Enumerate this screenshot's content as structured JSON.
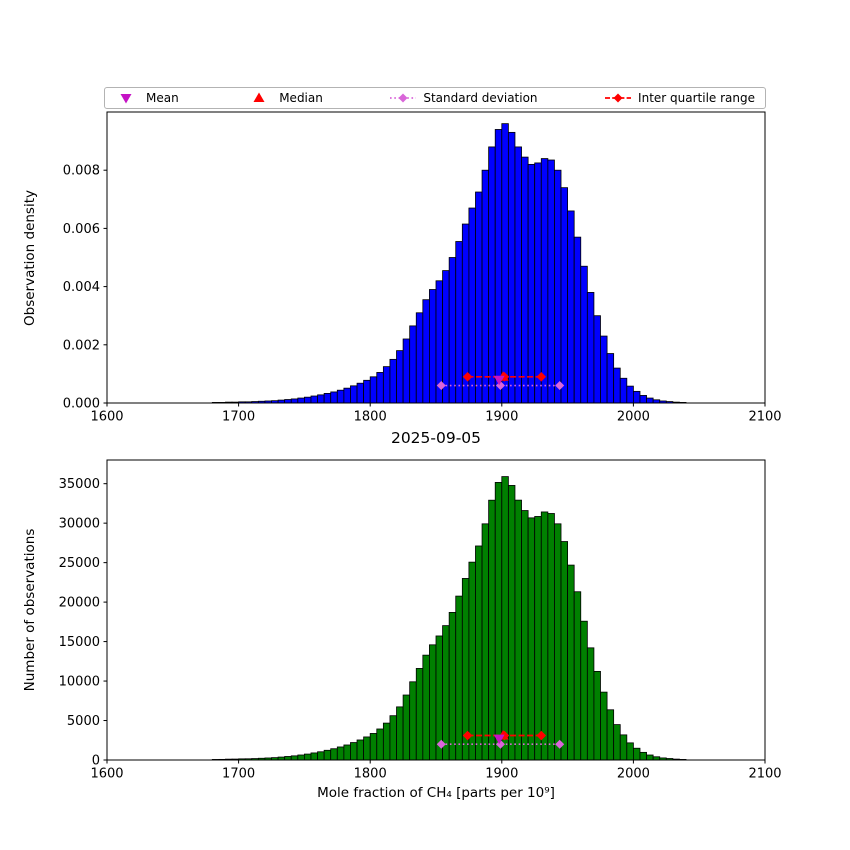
{
  "title": "2025-09-05",
  "xlabel": "Mole fraction of CH₄ [parts per 10⁹]",
  "colors": {
    "mean": "#c513c5",
    "median": "#ff0000",
    "std": "#d966d9",
    "iqr": "#ff0000",
    "bar_top": "#0000ff",
    "bar_bottom": "#008000",
    "edge": "#000000"
  },
  "legend": {
    "items": [
      {
        "label": "Mean",
        "marker": "triangle-down",
        "color": "#c513c5",
        "line": null
      },
      {
        "label": "Median",
        "marker": "triangle-up",
        "color": "#ff0000",
        "line": null
      },
      {
        "label": "Standard deviation",
        "marker": "diamond",
        "color": "#d966d9",
        "line": "dotted"
      },
      {
        "label": "Inter quartile range",
        "marker": "diamond",
        "color": "#ff0000",
        "line": "dashed"
      }
    ]
  },
  "stats": {
    "mean": 1898,
    "median": 1901,
    "std_range": [
      1854,
      1944
    ],
    "iqr_range": [
      1874,
      1930
    ]
  },
  "chart_data": [
    {
      "type": "bar",
      "role": "histogram",
      "name": "density-histogram",
      "ylabel": "Observation density",
      "bar_color": "#0000ff",
      "bin_start": 1680,
      "bin_width": 5,
      "xlim": [
        1600,
        2100
      ],
      "ylim": [
        0,
        0.01
      ],
      "xticks": [
        1600,
        1700,
        1800,
        1900,
        2000,
        2100
      ],
      "yticks": [
        0,
        0.002,
        0.004,
        0.006,
        0.008
      ],
      "ytick_labels": [
        "0.000",
        "0.002",
        "0.004",
        "0.006",
        "0.008"
      ],
      "values": [
        2e-05,
        2e-05,
        3e-05,
        3e-05,
        4e-05,
        4e-05,
        5e-05,
        6e-05,
        7e-05,
        8e-05,
        0.0001,
        0.00012,
        0.00014,
        0.00017,
        0.0002,
        0.00024,
        0.00028,
        0.00033,
        0.00038,
        0.00044,
        0.00051,
        0.00059,
        0.00068,
        0.00078,
        0.0009,
        0.00105,
        0.00125,
        0.0015,
        0.0018,
        0.0022,
        0.00265,
        0.0031,
        0.00355,
        0.0039,
        0.0042,
        0.00455,
        0.005,
        0.00555,
        0.00615,
        0.0067,
        0.00725,
        0.008,
        0.0088,
        0.0094,
        0.0096,
        0.0093,
        0.0088,
        0.00845,
        0.0082,
        0.00825,
        0.0084,
        0.00835,
        0.008,
        0.0074,
        0.0066,
        0.0057,
        0.0047,
        0.0038,
        0.003,
        0.0023,
        0.0017,
        0.0012,
        0.00085,
        0.00058,
        0.0004,
        0.00026,
        0.00017,
        0.00011,
        7e-05,
        5e-05,
        3e-05,
        2e-05
      ],
      "markers": {
        "mean": {
          "x": 1898,
          "y": 0.0008
        },
        "median": {
          "x": 1901,
          "y": 0.0009
        },
        "std": {
          "x1": 1854,
          "x2": 1944,
          "y": 0.0006
        },
        "iqr": {
          "x1": 1874,
          "x2": 1930,
          "y": 0.0009
        }
      }
    },
    {
      "type": "bar",
      "role": "histogram",
      "name": "counts-histogram",
      "ylabel": "Number of observations",
      "bar_color": "#008000",
      "bin_start": 1680,
      "bin_width": 5,
      "xlim": [
        1600,
        2100
      ],
      "ylim": [
        0,
        38000
      ],
      "xticks": [
        1600,
        1700,
        1800,
        1900,
        2000,
        2100
      ],
      "yticks": [
        0,
        5000,
        10000,
        15000,
        20000,
        25000,
        30000,
        35000
      ],
      "ytick_labels": [
        "0",
        "5000",
        "10000",
        "15000",
        "20000",
        "25000",
        "30000",
        "35000"
      ],
      "values": [
        71,
        78,
        109,
        118,
        147,
        155,
        183,
        221,
        258,
        301,
        372,
        448,
        527,
        634,
        751,
        896,
        1042,
        1230,
        1428,
        1651,
        1903,
        2210,
        2537,
        2921,
        3362,
        3929,
        4673,
        5612,
        6729,
        8231,
        9906,
        11598,
        13281,
        14590,
        15712,
        17021,
        18695,
        20761,
        22998,
        25062,
        27110,
        29915,
        32908,
        35161,
        35898,
        34779,
        32915,
        31598,
        30671,
        30849,
        31420,
        31225,
        29917,
        27672,
        24688,
        21313,
        17581,
        14208,
        11223,
        8598,
        6361,
        4485,
        3183,
        2171,
        1492,
        968,
        633,
        409,
        264,
        189,
        115,
        73
      ],
      "markers": {
        "mean": {
          "x": 1898,
          "y": 2700
        },
        "median": {
          "x": 1901,
          "y": 3100
        },
        "std": {
          "x1": 1854,
          "x2": 1944,
          "y": 2000
        },
        "iqr": {
          "x1": 1874,
          "x2": 1930,
          "y": 3100
        }
      }
    }
  ]
}
